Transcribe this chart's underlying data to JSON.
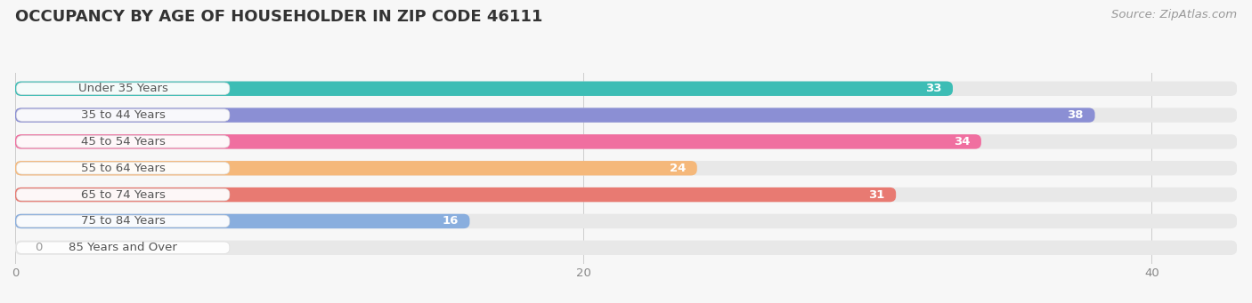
{
  "title": "OCCUPANCY BY AGE OF HOUSEHOLDER IN ZIP CODE 46111",
  "source": "Source: ZipAtlas.com",
  "categories": [
    "Under 35 Years",
    "35 to 44 Years",
    "45 to 54 Years",
    "55 to 64 Years",
    "65 to 74 Years",
    "75 to 84 Years",
    "85 Years and Over"
  ],
  "values": [
    33,
    38,
    34,
    24,
    31,
    16,
    0
  ],
  "bar_colors": [
    "#3dbdb5",
    "#8b8fd4",
    "#f06fa0",
    "#f5b87a",
    "#e87a72",
    "#89aede",
    "#c9a8d4"
  ],
  "bar_bg_color": "#e8e8e8",
  "xlim": [
    0,
    43
  ],
  "xticks": [
    0,
    20,
    40
  ],
  "title_fontsize": 13,
  "label_fontsize": 9.5,
  "value_fontsize": 9.5,
  "source_fontsize": 9.5,
  "bg_color": "#f7f7f7",
  "label_bg_color": "#ffffff",
  "bar_height": 0.55,
  "bar_spacing": 1.0
}
